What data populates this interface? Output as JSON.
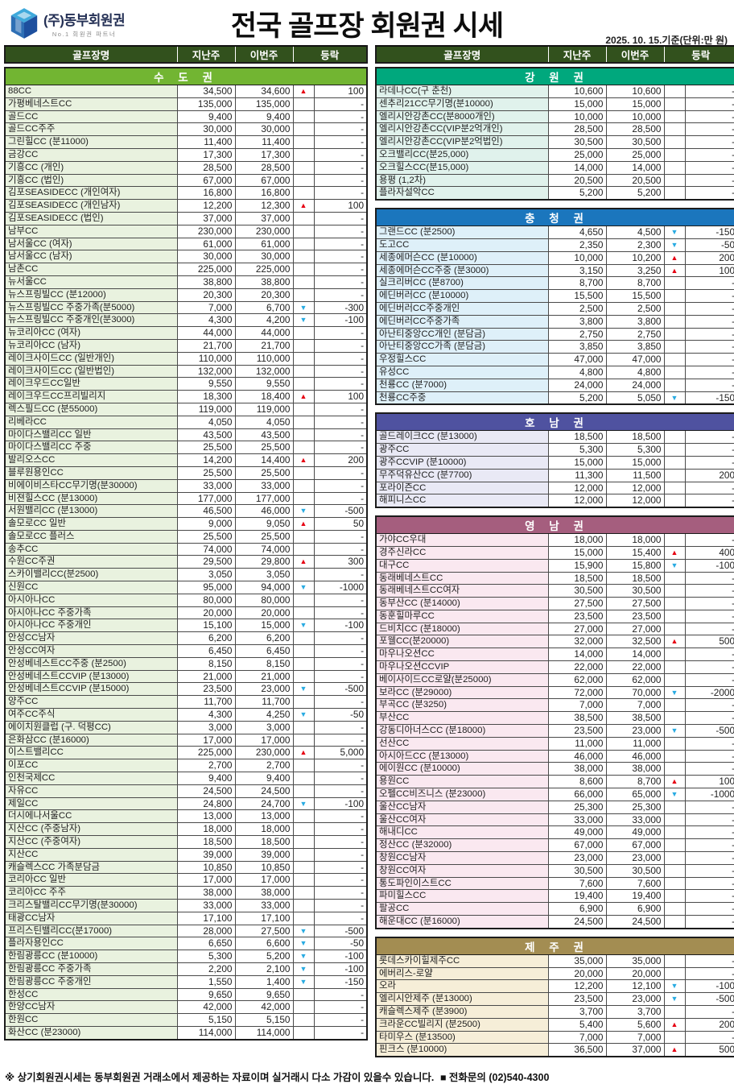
{
  "header": {
    "logo_title": "(주)동부회원권",
    "logo_subtitle": "No.1 회원권 파트너",
    "title": "전국 골프장 회원권 시세",
    "date_note": "2025. 10. 15.기준(단위:만 원)"
  },
  "columns": {
    "name": "골프장명",
    "last_week": "지난주",
    "this_week": "이번주",
    "change": "등락"
  },
  "colors": {
    "table_header_bg": "#32511d",
    "up_arrow": "#e60012",
    "down_arrow": "#29abe2"
  },
  "left_sections": [
    {
      "title": "수 도 권",
      "band": "#72b532",
      "tint": "#e9f2df",
      "rows": [
        [
          "88CC",
          "34,500",
          "34,600",
          "up",
          "100"
        ],
        [
          "가평베네스트CC",
          "135,000",
          "135,000",
          "",
          "-"
        ],
        [
          "골드CC",
          "9,400",
          "9,400",
          "",
          "-"
        ],
        [
          "골드CC주주",
          "30,000",
          "30,000",
          "",
          "-"
        ],
        [
          "그린힐CC (분11000)",
          "11,400",
          "11,400",
          "",
          "-"
        ],
        [
          "금강CC",
          "17,300",
          "17,300",
          "",
          "-"
        ],
        [
          "기흥CC (개인)",
          "28,500",
          "28,500",
          "",
          "-"
        ],
        [
          "기흥CC (법인)",
          "67,000",
          "67,000",
          "",
          "-"
        ],
        [
          "김포SEASIDECC (개인여자)",
          "16,800",
          "16,800",
          "",
          "-"
        ],
        [
          "김포SEASIDECC (개인남자)",
          "12,200",
          "12,300",
          "up",
          "100"
        ],
        [
          "김포SEASIDECC (법인)",
          "37,000",
          "37,000",
          "",
          "-"
        ],
        [
          "남부CC",
          "230,000",
          "230,000",
          "",
          "-"
        ],
        [
          "남서울CC (여자)",
          "61,000",
          "61,000",
          "",
          "-"
        ],
        [
          "남서울CC (남자)",
          "30,000",
          "30,000",
          "",
          "-"
        ],
        [
          "남촌CC",
          "225,000",
          "225,000",
          "",
          "-"
        ],
        [
          "뉴서울CC",
          "38,800",
          "38,800",
          "",
          "-"
        ],
        [
          "뉴스프링빌CC (분12000)",
          "20,300",
          "20,300",
          "",
          "-"
        ],
        [
          "뉴스프링빌CC 주중가족(분5000)",
          "7,000",
          "6,700",
          "down",
          "-300"
        ],
        [
          "뉴스프링빌CC 주중개인(분3000)",
          "4,300",
          "4,200",
          "down",
          "-100"
        ],
        [
          "뉴코리아CC (여자)",
          "44,000",
          "44,000",
          "",
          "-"
        ],
        [
          "뉴코리아CC (남자)",
          "21,700",
          "21,700",
          "",
          "-"
        ],
        [
          "레이크사이드CC (일반개인)",
          "110,000",
          "110,000",
          "",
          "-"
        ],
        [
          "레이크사이드CC (일반법인)",
          "132,000",
          "132,000",
          "",
          "-"
        ],
        [
          "레이크우드CC일반",
          "9,550",
          "9,550",
          "",
          "-"
        ],
        [
          "레이크우드CC프리빌리지",
          "18,300",
          "18,400",
          "up",
          "100"
        ],
        [
          "렉스필드CC (분55000)",
          "119,000",
          "119,000",
          "",
          "-"
        ],
        [
          "리베라CC",
          "4,050",
          "4,050",
          "",
          "-"
        ],
        [
          "마이다스밸리CC 일반",
          "43,500",
          "43,500",
          "",
          "-"
        ],
        [
          "마이다스밸리CC 주중",
          "25,500",
          "25,500",
          "",
          "-"
        ],
        [
          "발리오스CC",
          "14,200",
          "14,400",
          "up",
          "200"
        ],
        [
          "블루원용인CC",
          "25,500",
          "25,500",
          "",
          "-"
        ],
        [
          "비에이비스타CC무기명(분30000)",
          "33,000",
          "33,000",
          "",
          "-"
        ],
        [
          "비젼힐스CC (분13000)",
          "177,000",
          "177,000",
          "",
          "-"
        ],
        [
          "서원밸리CC (분13000)",
          "46,500",
          "46,000",
          "down",
          "-500"
        ],
        [
          "솔모로CC 일반",
          "9,000",
          "9,050",
          "up",
          "50"
        ],
        [
          "솔모로CC 플러스",
          "25,500",
          "25,500",
          "",
          "-"
        ],
        [
          "송추CC",
          "74,000",
          "74,000",
          "",
          "-"
        ],
        [
          "수원CC주권",
          "29,500",
          "29,800",
          "up",
          "300"
        ],
        [
          "스카이밸리CC(분2500)",
          "3,050",
          "3,050",
          "",
          "-"
        ],
        [
          "신원CC",
          "95,000",
          "94,000",
          "down",
          "-1000"
        ],
        [
          "아시아나CC",
          "80,000",
          "80,000",
          "",
          "-"
        ],
        [
          "아시아나CC 주중가족",
          "20,000",
          "20,000",
          "",
          "-"
        ],
        [
          "아시아나CC 주중개인",
          "15,100",
          "15,000",
          "down",
          "-100"
        ],
        [
          "안성CC남자",
          "6,200",
          "6,200",
          "",
          "-"
        ],
        [
          "안성CC여자",
          "6,450",
          "6,450",
          "",
          "-"
        ],
        [
          "안성베네스트CC주중 (분2500)",
          "8,150",
          "8,150",
          "",
          "-"
        ],
        [
          "안성베네스트CCVIP (분13000)",
          "21,000",
          "21,000",
          "",
          "-"
        ],
        [
          "안성베네스트CCVIP (분15000)",
          "23,500",
          "23,000",
          "down",
          "-500"
        ],
        [
          "양주CC",
          "11,700",
          "11,700",
          "",
          "-"
        ],
        [
          "여주CC주식",
          "4,300",
          "4,250",
          "down",
          "-50"
        ],
        [
          "에이치원클럽 (구. 덕평CC)",
          "3,000",
          "3,000",
          "",
          "-"
        ],
        [
          "은화삼CC (분16000)",
          "17,000",
          "17,000",
          "",
          "-"
        ],
        [
          "이스트밸리CC",
          "225,000",
          "230,000",
          "up",
          "5,000"
        ],
        [
          "이포CC",
          "2,700",
          "2,700",
          "",
          "-"
        ],
        [
          "인천국제CC",
          "9,400",
          "9,400",
          "",
          "-"
        ],
        [
          "자유CC",
          "24,500",
          "24,500",
          "",
          "-"
        ],
        [
          "제일CC",
          "24,800",
          "24,700",
          "down",
          "-100"
        ],
        [
          "더시에나서울CC",
          "13,000",
          "13,000",
          "",
          "-"
        ],
        [
          "지산CC (주중남자)",
          "18,000",
          "18,000",
          "",
          "-"
        ],
        [
          "지산CC (주중여자)",
          "18,500",
          "18,500",
          "",
          "-"
        ],
        [
          "지산CC",
          "39,000",
          "39,000",
          "",
          "-"
        ],
        [
          "캐슬렉스CC 가족분담금",
          "10,850",
          "10,850",
          "",
          "-"
        ],
        [
          "코리아CC 일반",
          "17,000",
          "17,000",
          "",
          "-"
        ],
        [
          "코리아CC 주주",
          "38,000",
          "38,000",
          "",
          "-"
        ],
        [
          "크리스탈밸리CC무기명(분30000)",
          "33,000",
          "33,000",
          "",
          "-"
        ],
        [
          "태광CC남자",
          "17,100",
          "17,100",
          "",
          "-"
        ],
        [
          "프리스틴밸리CC(분17000)",
          "28,000",
          "27,500",
          "down",
          "-500"
        ],
        [
          "플라자용인CC",
          "6,650",
          "6,600",
          "down",
          "-50"
        ],
        [
          "한림광릉CC (분10000)",
          "5,300",
          "5,200",
          "down",
          "-100"
        ],
        [
          "한림광릉CC 주중가족",
          "2,200",
          "2,100",
          "down",
          "-100"
        ],
        [
          "한림광릉CC 주중개인",
          "1,550",
          "1,400",
          "down",
          "-150"
        ],
        [
          "한성CC",
          "9,650",
          "9,650",
          "",
          "-"
        ],
        [
          "한양CC남자",
          "42,000",
          "42,000",
          "",
          "-"
        ],
        [
          "한원CC",
          "5,150",
          "5,150",
          "",
          "-"
        ],
        [
          "화산CC (분23000)",
          "114,000",
          "114,000",
          "",
          "-"
        ]
      ]
    }
  ],
  "right_sections": [
    {
      "title": "강 원 권",
      "band": "#00a87d",
      "tint": "#e0f2ec",
      "rows": [
        [
          "라데나CC(구 춘천)",
          "10,600",
          "10,600",
          "",
          "-"
        ],
        [
          "센추리21CC무기명(분10000)",
          "15,000",
          "15,000",
          "",
          "-"
        ],
        [
          "엘리시안강촌CC(분8000개인)",
          "10,000",
          "10,000",
          "",
          "-"
        ],
        [
          "엘리시안강촌CC(VIP분2억개인)",
          "28,500",
          "28,500",
          "",
          "-"
        ],
        [
          "엘리시안강촌CC(VIP분2억법인)",
          "30,500",
          "30,500",
          "",
          "-"
        ],
        [
          "오크밸리CC(분25,000)",
          "25,000",
          "25,000",
          "",
          "-"
        ],
        [
          "오크힐스CC(분15,000)",
          "14,000",
          "14,000",
          "",
          "-"
        ],
        [
          "용평 (1,2차)",
          "20,500",
          "20,500",
          "",
          "-"
        ],
        [
          "플라자설악CC",
          "5,200",
          "5,200",
          "",
          "-"
        ]
      ]
    },
    {
      "title": "충 청 권",
      "band": "#1b76bd",
      "tint": "#def0f9",
      "rows": [
        [
          "그랜드CC (분2500)",
          "4,650",
          "4,500",
          "down",
          "-150"
        ],
        [
          "도고CC",
          "2,350",
          "2,300",
          "down",
          "-50"
        ],
        [
          "세종에머슨CC (분10000)",
          "10,000",
          "10,200",
          "up",
          "200"
        ],
        [
          "세종에머슨CC주중 (분3000)",
          "3,150",
          "3,250",
          "up",
          "100"
        ],
        [
          "실크리버CC (분8700)",
          "8,700",
          "8,700",
          "",
          "-"
        ],
        [
          "에딘버러CC (분10000)",
          "15,500",
          "15,500",
          "",
          "-"
        ],
        [
          "에딘버러CC주중개인",
          "2,500",
          "2,500",
          "",
          "-"
        ],
        [
          "에딘버러CC주중가족",
          "3,800",
          "3,800",
          "",
          "-"
        ],
        [
          "아난티중앙CC개인 (분담금)",
          "2,750",
          "2,750",
          "",
          "-"
        ],
        [
          "아난티중앙CC가족 (분담금)",
          "3,850",
          "3,850",
          "",
          "-"
        ],
        [
          "우정힐스CC",
          "47,000",
          "47,000",
          "",
          "-"
        ],
        [
          "유성CC",
          "4,800",
          "4,800",
          "",
          "-"
        ],
        [
          "천룡CC (분7000)",
          "24,000",
          "24,000",
          "",
          "-"
        ],
        [
          "천룡CC주중",
          "5,200",
          "5,050",
          "down",
          "-150"
        ]
      ]
    },
    {
      "title": "호 남 권",
      "band": "#4f52a0",
      "tint": "#e9e9f5",
      "rows": [
        [
          "골드레이크CC (분13000)",
          "18,500",
          "18,500",
          "",
          "-"
        ],
        [
          "광주CC",
          "5,300",
          "5,300",
          "",
          "-"
        ],
        [
          "광주CCVIP (분10000)",
          "15,000",
          "15,000",
          "",
          "-"
        ],
        [
          "무주덕유산CC (분7700)",
          "11,300",
          "11,500",
          "",
          "200"
        ],
        [
          "포라이즌CC",
          "12,000",
          "12,000",
          "",
          "-"
        ],
        [
          "해피니스CC",
          "12,000",
          "12,000",
          "",
          "-"
        ]
      ]
    },
    {
      "title": "영 남 권",
      "band": "#a55e7e",
      "tint": "#fae8f0",
      "rows": [
        [
          "가야CC우대",
          "18,000",
          "18,000",
          "",
          "-"
        ],
        [
          "경주신라CC",
          "15,000",
          "15,400",
          "up",
          "400"
        ],
        [
          "대구CC",
          "15,900",
          "15,800",
          "down",
          "-100"
        ],
        [
          "동래베네스트CC",
          "18,500",
          "18,500",
          "",
          "-"
        ],
        [
          "동래베네스트CC여자",
          "30,500",
          "30,500",
          "",
          "-"
        ],
        [
          "동부산CC (분14000)",
          "27,500",
          "27,500",
          "",
          "-"
        ],
        [
          "동훈힐마루CC",
          "23,500",
          "23,500",
          "",
          "-"
        ],
        [
          "드비치CC (분18000)",
          "27,000",
          "27,000",
          "",
          "-"
        ],
        [
          "포웰CC(분20000)",
          "32,000",
          "32,500",
          "up",
          "500"
        ],
        [
          "마우나오션CC",
          "14,000",
          "14,000",
          "",
          "-"
        ],
        [
          "마우나오션CCVIP",
          "22,000",
          "22,000",
          "",
          "-"
        ],
        [
          "베이사이드CC로얄(분25000)",
          "62,000",
          "62,000",
          "",
          "-"
        ],
        [
          "보라CC (분29000)",
          "72,000",
          "70,000",
          "down",
          "-2000"
        ],
        [
          "부곡CC (분3250)",
          "7,000",
          "7,000",
          "",
          "-"
        ],
        [
          "부산CC",
          "38,500",
          "38,500",
          "",
          "-"
        ],
        [
          "강동디아너스CC (분18000)",
          "23,500",
          "23,000",
          "down",
          "-500"
        ],
        [
          "선산CC",
          "11,000",
          "11,000",
          "",
          "-"
        ],
        [
          "아시아드CC (분13000)",
          "46,000",
          "46,000",
          "",
          "-"
        ],
        [
          "에이원CC (분10000)",
          "38,000",
          "38,000",
          "",
          "-"
        ],
        [
          "용원CC",
          "8,600",
          "8,700",
          "up",
          "100"
        ],
        [
          "오펠CC비즈니스 (분23000)",
          "66,000",
          "65,000",
          "down",
          "-1000"
        ],
        [
          "울산CC남자",
          "25,300",
          "25,300",
          "",
          "-"
        ],
        [
          "울산CC여자",
          "33,000",
          "33,000",
          "",
          "-"
        ],
        [
          "해내디CC",
          "49,000",
          "49,000",
          "",
          "-"
        ],
        [
          "정산CC (분32000)",
          "67,000",
          "67,000",
          "",
          "-"
        ],
        [
          "창원CC남자",
          "23,000",
          "23,000",
          "",
          "-"
        ],
        [
          "창원CC여자",
          "30,500",
          "30,500",
          "",
          "-"
        ],
        [
          "통도파인이스트CC",
          "7,600",
          "7,600",
          "",
          "-"
        ],
        [
          "파미힐스CC",
          "19,400",
          "19,400",
          "",
          "-"
        ],
        [
          "팔공CC",
          "6,900",
          "6,900",
          "",
          "-"
        ],
        [
          "해운대CC (분16000)",
          "24,500",
          "24,500",
          "",
          "-"
        ]
      ]
    },
    {
      "title": "제 주 권",
      "band": "#a38d52",
      "tint": "#f6eed8",
      "rows": [
        [
          "롯데스카이힐제주CC",
          "35,000",
          "35,000",
          "",
          "-"
        ],
        [
          "에버리스-로얄",
          "20,000",
          "20,000",
          "",
          "-"
        ],
        [
          "오라",
          "12,200",
          "12,100",
          "down",
          "-100"
        ],
        [
          "엘리시안제주 (분13000)",
          "23,500",
          "23,000",
          "down",
          "-500"
        ],
        [
          "캐슬렉스제주 (분3900)",
          "3,700",
          "3,700",
          "",
          "-"
        ],
        [
          "크라운CC빌리지 (분2500)",
          "5,400",
          "5,600",
          "up",
          "200"
        ],
        [
          "타미우스 (분13500)",
          "7,000",
          "7,000",
          "",
          "-"
        ],
        [
          "핀크스 (분10000)",
          "36,500",
          "37,000",
          "up",
          "500"
        ]
      ]
    }
  ],
  "footer": {
    "disclaimer": "※ 상기회원권시세는 동부회원권 거래소에서 제공하는 자료이며 실거래시 다소 가감이 있을수 있습니다.",
    "phone": "■ 전화문의 (02)540-4300"
  }
}
